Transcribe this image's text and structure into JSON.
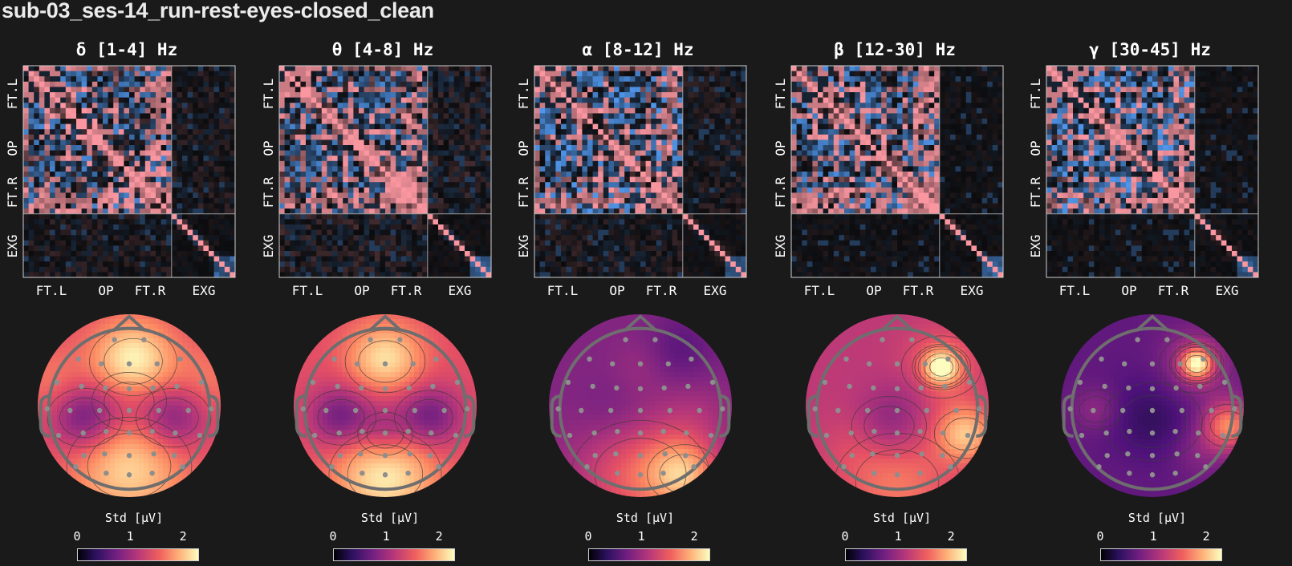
{
  "window": {
    "title": "sub-03_ses-14_run-rest-eyes-closed_clean"
  },
  "chart_data": [
    {
      "type": "heatmap",
      "title": "δ [1-4] Hz",
      "band": "delta",
      "group_labels": [
        "FT.L",
        "OP",
        "FT.R",
        "EXG"
      ],
      "x_tick_labels": [
        "FT.L",
        "OP",
        "FT.R",
        "EXG"
      ],
      "y_tick_labels": [
        "FT.L",
        "OP",
        "FT.R",
        "EXG"
      ],
      "colormap": "blue-black-red diverging",
      "topomap": {
        "type": "topomap",
        "colorbar_label": "Std [μV]",
        "colorbar_ticks": [
          "0",
          "1",
          "2"
        ],
        "colormap": "magma",
        "vlim": [
          0,
          2.3
        ],
        "description": "high frontal-central and occipital, low left/right temporal"
      }
    },
    {
      "type": "heatmap",
      "title": "θ [4-8] Hz",
      "band": "theta",
      "group_labels": [
        "FT.L",
        "OP",
        "FT.R",
        "EXG"
      ],
      "x_tick_labels": [
        "FT.L",
        "OP",
        "FT.R",
        "EXG"
      ],
      "y_tick_labels": [
        "FT.L",
        "OP",
        "FT.R",
        "EXG"
      ],
      "colormap": "blue-black-red diverging",
      "topomap": {
        "type": "topomap",
        "colorbar_label": "Std [μV]",
        "colorbar_ticks": [
          "0",
          "1",
          "2"
        ],
        "colormap": "magma",
        "vlim": [
          0,
          2.3
        ],
        "description": "high frontal-central and occipital, low temporal and parietal"
      }
    },
    {
      "type": "heatmap",
      "title": "α [8-12] Hz",
      "band": "alpha",
      "group_labels": [
        "FT.L",
        "OP",
        "FT.R",
        "EXG"
      ],
      "x_tick_labels": [
        "FT.L",
        "OP",
        "FT.R",
        "EXG"
      ],
      "y_tick_labels": [
        "FT.L",
        "OP",
        "FT.R",
        "EXG"
      ],
      "colormap": "blue-black-red diverging",
      "topomap": {
        "type": "topomap",
        "colorbar_label": "Std [μV]",
        "colorbar_ticks": [
          "0",
          "1",
          "2"
        ],
        "colormap": "magma",
        "vlim": [
          0,
          2.3
        ],
        "description": "low frontal, high posterior / occipital"
      }
    },
    {
      "type": "heatmap",
      "title": "β [12-30] Hz",
      "band": "beta",
      "group_labels": [
        "FT.L",
        "OP",
        "FT.R",
        "EXG"
      ],
      "x_tick_labels": [
        "FT.L",
        "OP",
        "FT.R",
        "EXG"
      ],
      "y_tick_labels": [
        "FT.L",
        "OP",
        "FT.R",
        "EXG"
      ],
      "colormap": "blue-black-red diverging",
      "topomap": {
        "type": "topomap",
        "colorbar_label": "Std [μV]",
        "colorbar_ticks": [
          "0",
          "1",
          "2"
        ],
        "colormap": "magma",
        "vlim": [
          0,
          2.3
        ],
        "description": "hotspot right frontal, high right temporal"
      }
    },
    {
      "type": "heatmap",
      "title": "γ [30-45] Hz",
      "band": "gamma",
      "group_labels": [
        "FT.L",
        "OP",
        "FT.R",
        "EXG"
      ],
      "x_tick_labels": [
        "FT.L",
        "OP",
        "FT.R",
        "EXG"
      ],
      "y_tick_labels": [
        "FT.L",
        "OP",
        "FT.R",
        "EXG"
      ],
      "colormap": "blue-black-red diverging",
      "topomap": {
        "type": "topomap",
        "colorbar_label": "Std [μV]",
        "colorbar_ticks": [
          "0",
          "1",
          "2"
        ],
        "colormap": "magma",
        "vlim": [
          0,
          2.3
        ],
        "description": "hotspot right frontal, high right temporal, low elsewhere"
      }
    }
  ]
}
